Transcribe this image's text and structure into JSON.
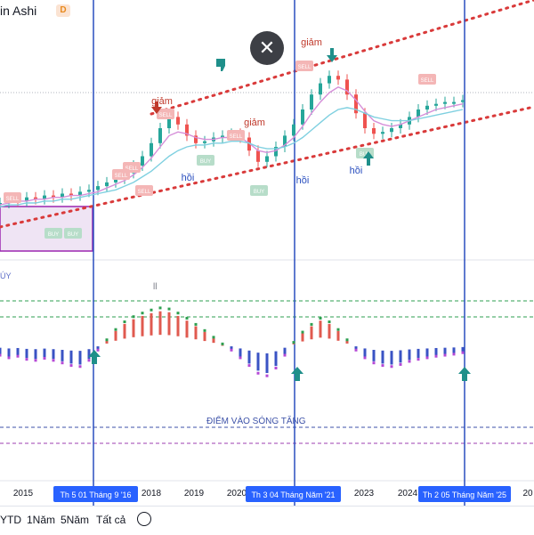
{
  "header": {
    "title": "in Ashi",
    "interval_badge": "D"
  },
  "close_label": "✕",
  "indicator_label": "ĐIỂM VÀO SÓNG TĂNG",
  "macd_marker": "ll",
  "buy_label_left": "ÚY",
  "bottom": {
    "items": [
      "YTD",
      "1Năm",
      "5Năm",
      "Tất cả"
    ]
  },
  "chart_data": {
    "type": "line",
    "x_axis": {
      "ticks": [
        "2015",
        "2018",
        "2019",
        "2020",
        "2023",
        "2024",
        "20"
      ],
      "highlighted": [
        "Th 5 01 Tháng 9 '16",
        "Th 3 04 Tháng Năm '21",
        "Th 2 05 Tháng Năm '25"
      ]
    },
    "annotations": [
      "giảm",
      "giảm",
      "giảm",
      "hồi",
      "hồi",
      "hồi"
    ],
    "signals": [
      "SELL",
      "SELL",
      "SELL",
      "SELL",
      "SELL",
      "SELL",
      "SELL",
      "SELL",
      "BUY",
      "BUY",
      "BUY",
      "BUY",
      "BUY"
    ],
    "series": [
      {
        "values": [
          0.2,
          0.22,
          0.21,
          0.23,
          0.22,
          0.24,
          0.23,
          0.25,
          0.24,
          0.26,
          0.27,
          0.29,
          0.31,
          0.33,
          0.36,
          0.4,
          0.45,
          0.52,
          0.6,
          0.66,
          0.62,
          0.56,
          0.52,
          0.53,
          0.55,
          0.56,
          0.57,
          0.55,
          0.48,
          0.42,
          0.45,
          0.5,
          0.56,
          0.62,
          0.7,
          0.78,
          0.84,
          0.88,
          0.86,
          0.78,
          0.68,
          0.6,
          0.57,
          0.58,
          0.6,
          0.62,
          0.66,
          0.7,
          0.72,
          0.73,
          0.74,
          0.74,
          0.75
        ]
      },
      {
        "values": [
          0.19,
          0.2,
          0.21,
          0.21,
          0.22,
          0.22,
          0.23,
          0.23,
          0.24,
          0.24,
          0.25,
          0.26,
          0.28,
          0.3,
          0.32,
          0.35,
          0.39,
          0.44,
          0.5,
          0.56,
          0.58,
          0.57,
          0.55,
          0.54,
          0.54,
          0.55,
          0.55,
          0.55,
          0.52,
          0.48,
          0.47,
          0.48,
          0.51,
          0.55,
          0.61,
          0.68,
          0.74,
          0.79,
          0.82,
          0.8,
          0.75,
          0.69,
          0.64,
          0.62,
          0.61,
          0.62,
          0.64,
          0.66,
          0.68,
          0.7,
          0.71,
          0.72,
          0.73
        ]
      },
      {
        "values": [
          0.18,
          0.19,
          0.19,
          0.2,
          0.2,
          0.21,
          0.21,
          0.22,
          0.22,
          0.23,
          0.24,
          0.25,
          0.26,
          0.27,
          0.29,
          0.31,
          0.34,
          0.37,
          0.41,
          0.45,
          0.48,
          0.5,
          0.51,
          0.51,
          0.52,
          0.52,
          0.53,
          0.53,
          0.52,
          0.5,
          0.49,
          0.49,
          0.5,
          0.52,
          0.55,
          0.59,
          0.63,
          0.67,
          0.7,
          0.71,
          0.7,
          0.68,
          0.66,
          0.65,
          0.64,
          0.64,
          0.64,
          0.65,
          0.66,
          0.67,
          0.68,
          0.69,
          0.7
        ]
      }
    ],
    "oscillator": {
      "values": [
        -0.2,
        -0.25,
        -0.22,
        -0.28,
        -0.3,
        -0.26,
        -0.3,
        -0.35,
        -0.4,
        -0.42,
        -0.3,
        -0.1,
        0.1,
        0.3,
        0.45,
        0.55,
        0.62,
        0.68,
        0.72,
        0.7,
        0.62,
        0.52,
        0.4,
        0.28,
        0.15,
        0.02,
        -0.1,
        -0.25,
        -0.4,
        -0.55,
        -0.6,
        -0.45,
        -0.2,
        0.05,
        0.25,
        0.4,
        0.52,
        0.45,
        0.3,
        0.1,
        -0.1,
        -0.25,
        -0.35,
        -0.4,
        -0.42,
        -0.38,
        -0.32,
        -0.28,
        -0.25,
        -0.22,
        -0.2,
        -0.18,
        -0.15
      ]
    }
  }
}
